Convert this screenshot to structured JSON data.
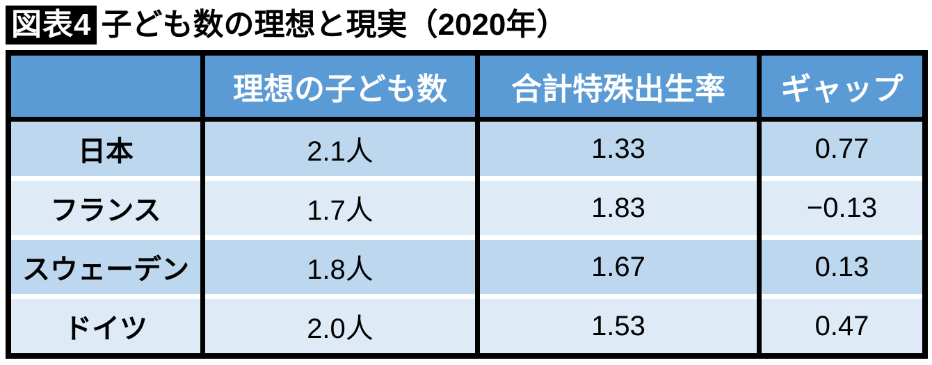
{
  "title": {
    "badge": "図表4",
    "text": "子ども数の理想と現実（2020年）"
  },
  "table": {
    "headers": [
      "",
      "理想の子ども数",
      "合計特殊出生率",
      "ギャップ"
    ],
    "rows": [
      {
        "country": "日本",
        "ideal": "2.1人",
        "tfr": "1.33",
        "gap": "0.77"
      },
      {
        "country": "フランス",
        "ideal": "1.7人",
        "tfr": "1.83",
        "gap": "−0.13"
      },
      {
        "country": "スウェーデン",
        "ideal": "1.8人",
        "tfr": "1.67",
        "gap": "0.13"
      },
      {
        "country": "ドイツ",
        "ideal": "2.0人",
        "tfr": "1.53",
        "gap": "0.47"
      }
    ]
  },
  "colors": {
    "header_bg": "#5B9BD5",
    "row_band_dark": "#BDD7EE",
    "row_band_light": "#DEEAF6",
    "border": "#000000",
    "row_separator": "#FFFFFF",
    "badge_bg": "#000000",
    "badge_text": "#FFFFFF",
    "header_text": "#FFFFFF",
    "body_text": "#000000"
  },
  "chart_data": {
    "type": "table",
    "title": "図表4 子ども数の理想と現実（2020年）",
    "columns": [
      "",
      "理想の子ども数",
      "合計特殊出生率",
      "ギャップ"
    ],
    "rows": [
      [
        "日本",
        "2.1人",
        "1.33",
        "0.77"
      ],
      [
        "フランス",
        "1.7人",
        "1.83",
        "−0.13"
      ],
      [
        "スウェーデン",
        "1.8人",
        "1.67",
        "0.13"
      ],
      [
        "ドイツ",
        "2.0人",
        "1.53",
        "0.47"
      ]
    ],
    "numeric": {
      "categories": [
        "日本",
        "フランス",
        "スウェーデン",
        "ドイツ"
      ],
      "ideal_children": [
        2.1,
        1.7,
        1.8,
        2.0
      ],
      "total_fertility_rate": [
        1.33,
        1.83,
        1.67,
        1.53
      ],
      "gap": [
        0.77,
        -0.13,
        0.13,
        0.47
      ]
    }
  }
}
